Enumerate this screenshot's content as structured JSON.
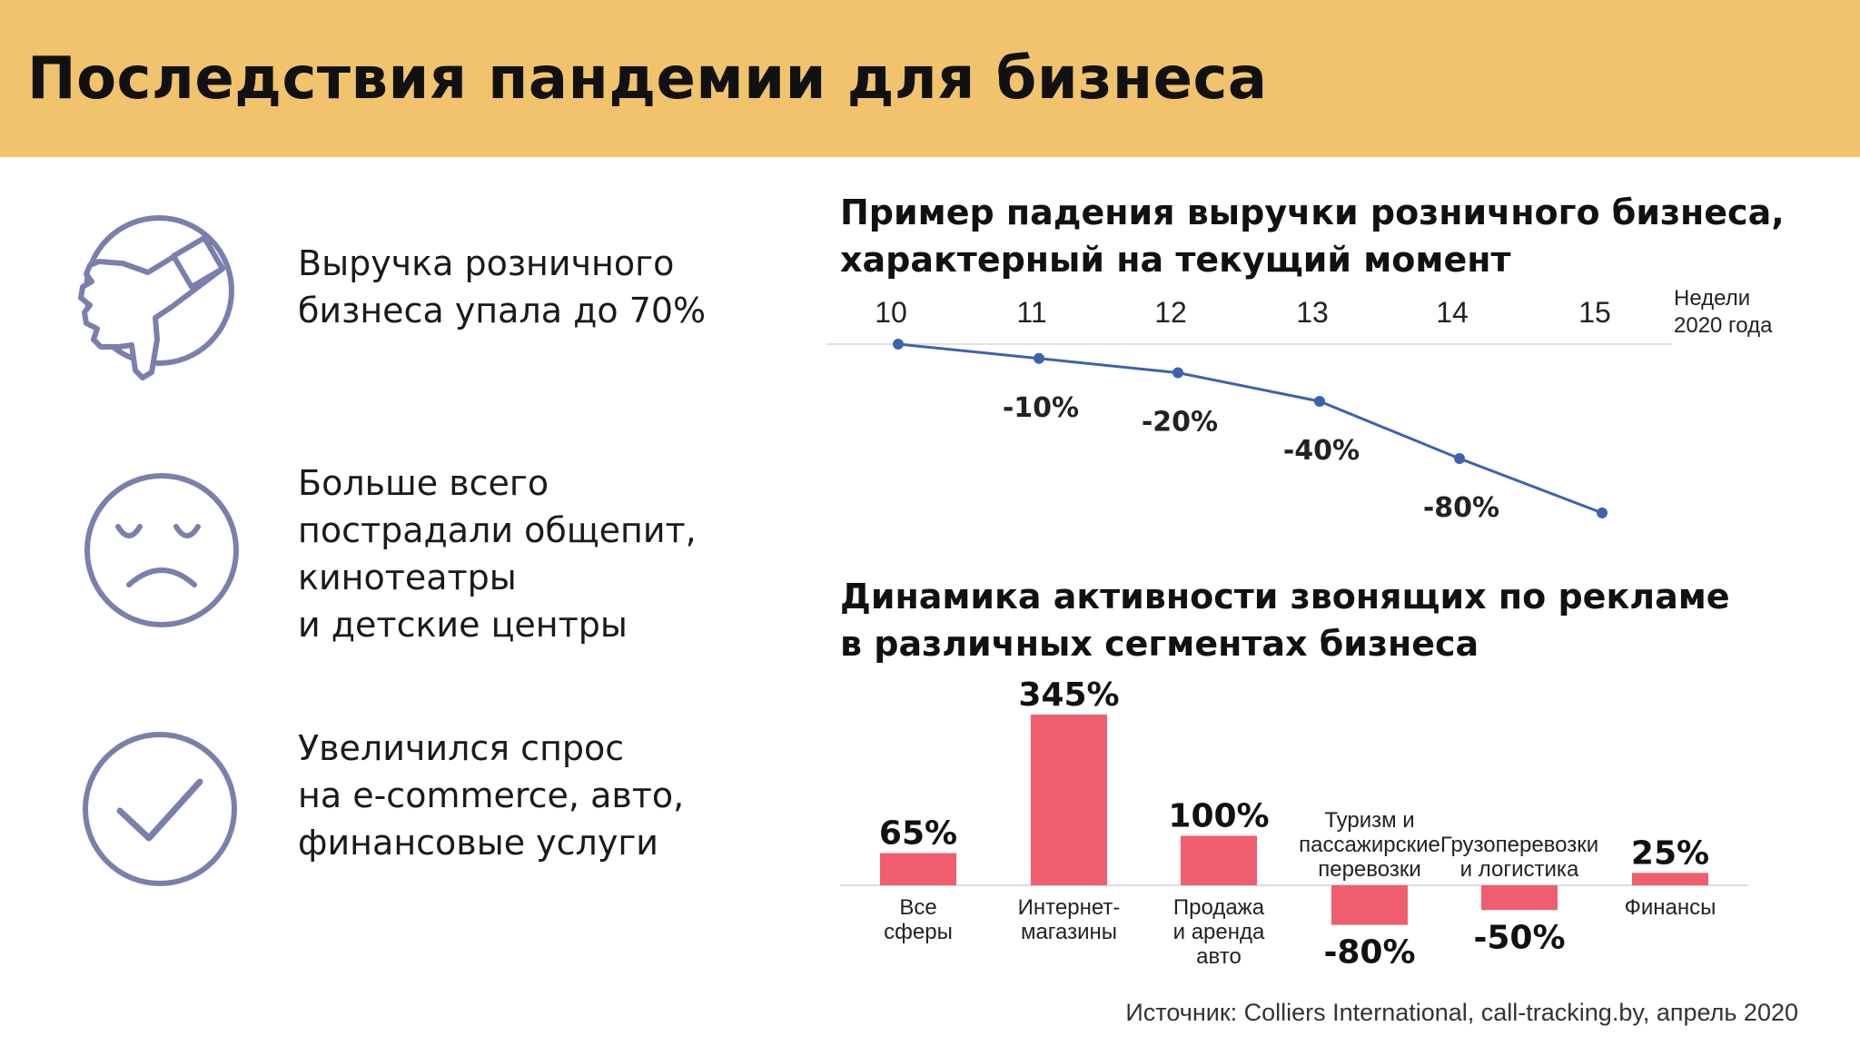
{
  "header": {
    "title": "Последствия пандемии для бизнеса"
  },
  "points": [
    {
      "icon": "thumbs-down-icon",
      "lines": [
        "Выручка розничного",
        "бизнеса упала до 70%"
      ]
    },
    {
      "icon": "sad-face-icon",
      "lines": [
        "Больше всего",
        "пострадали общепит,",
        "кинотеатры",
        "и детские  центры"
      ]
    },
    {
      "icon": "checkmark-icon",
      "lines": [
        "Увеличился спрос",
        "на  e-commerce, авто,",
        "финансовые услуги"
      ]
    }
  ],
  "colors": {
    "header_bg": "#f1c36c",
    "icon": "#7b7fae",
    "line": "#3f62ae",
    "bar": "#ef5d6e"
  },
  "chart_data": [
    {
      "type": "line",
      "title_lines": [
        "Пример падения выручки розничного бизнеса,",
        "характерный  на текущий момент"
      ],
      "x_axis_label_lines": [
        "Недели",
        "2020 года"
      ],
      "x": [
        10,
        11,
        12,
        13,
        14,
        15
      ],
      "tick_labels": [
        "10",
        "11",
        "12",
        "13",
        "14",
        "15"
      ],
      "values": [
        0,
        -10,
        -20,
        -40,
        -80,
        null
      ],
      "data_labels": [
        "",
        "-10%",
        "-20%",
        "-40%",
        "-80%",
        ""
      ],
      "grid": false
    },
    {
      "type": "bar",
      "title_lines": [
        "Динамика активности звонящих по рекламе",
        "в различных сегментах бизнеса"
      ],
      "categories": [
        [
          "Все",
          "сферы"
        ],
        [
          "Интернет-",
          "магазины"
        ],
        [
          "Продажа",
          "и  аренда",
          "авто"
        ],
        [
          "Туризм и",
          "пассажирские",
          "перевозки"
        ],
        [
          "Грузоперевозки",
          "и логистика"
        ],
        [
          "Финансы"
        ]
      ],
      "values": [
        65,
        345,
        100,
        -80,
        -50,
        25
      ],
      "value_labels": [
        "65%",
        "345%",
        "100%",
        "-80%",
        "-50%",
        "25%"
      ],
      "unit": "%"
    }
  ],
  "source": "Источник: Colliers International, call-tracking.by, апрель 2020"
}
